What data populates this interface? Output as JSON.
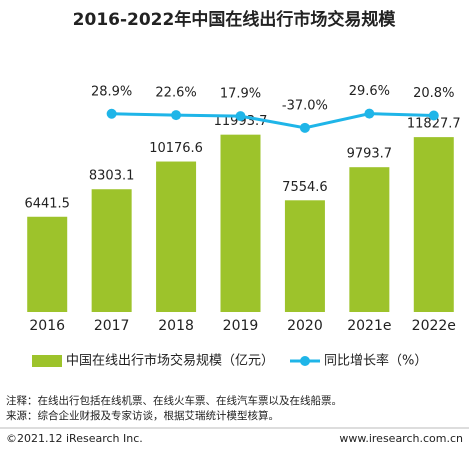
{
  "chart_data": {
    "type": "bar_line",
    "title": "2016-2022年中国在线出行市场交易规模",
    "categories": [
      "2016",
      "2017",
      "2018",
      "2019",
      "2020",
      "2021e",
      "2022e"
    ],
    "series": [
      {
        "name": "中国在线出行市场交易规模（亿元）",
        "color": "#9dc32b",
        "type": "bar",
        "values": [
          6441.5,
          8303.1,
          10176.6,
          11993.7,
          7554.6,
          9793.7,
          11827.7
        ]
      },
      {
        "name": "同比增长率（%）",
        "color": "#1fb5e8",
        "type": "line",
        "axis": "y2",
        "values": [
          null,
          28.9,
          22.6,
          17.9,
          -37.0,
          29.6,
          20.8
        ],
        "value_labels": [
          null,
          "28.9%",
          "22.6%",
          "17.9%",
          "-37.0%",
          "29.6%",
          "20.8%"
        ]
      }
    ],
    "ylim": [
      0,
      14000
    ],
    "y2lim": [
      -900,
      70
    ],
    "legend": "bottom",
    "notes": [
      "注释：在线出行包括在线机票、在线火车票、在线汽车票以及在线船票。",
      "来源：综合企业财报及专家访谈，根据艾瑞统计模型核算。"
    ],
    "footer_left": "©2021.12 iResearch Inc.",
    "footer_right": "www.iresearch.com.cn"
  }
}
